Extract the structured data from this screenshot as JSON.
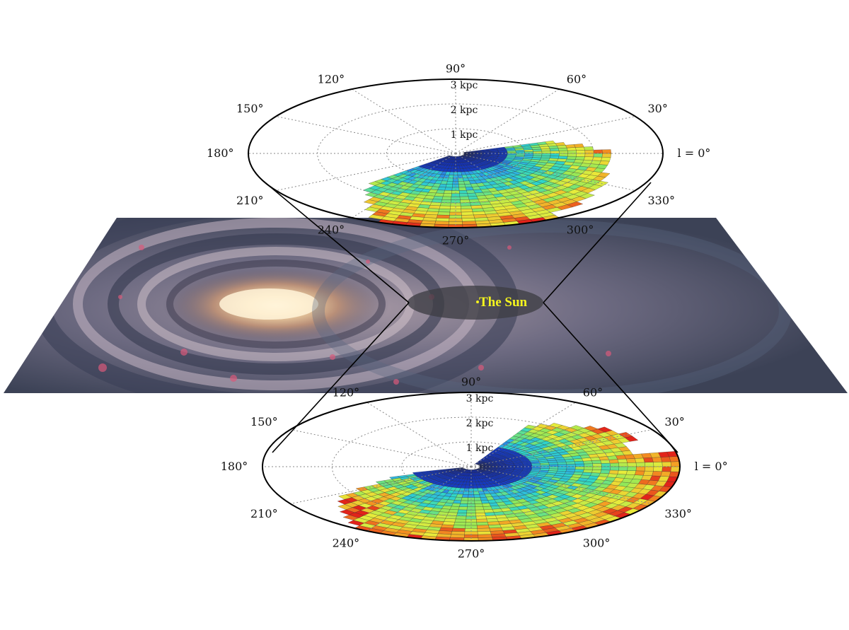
{
  "colors": {
    "low": "#0a1a9a",
    "mid": "#2fd6c8",
    "midhigh": "#d8f03a",
    "high": "#e2231a",
    "sun_label": "#f4f41e",
    "grid": "#888888",
    "outline": "#000000"
  },
  "galaxy": {
    "sun_label": "The Sun",
    "image_description_icon": "milky-way-spiral-illustration"
  },
  "polar_axes": [
    {
      "id": "top",
      "angle_labels": [
        {
          "deg": 0,
          "text": "l = 0°"
        },
        {
          "deg": 30,
          "text": "30°"
        },
        {
          "deg": 60,
          "text": "60°"
        },
        {
          "deg": 90,
          "text": "90°"
        },
        {
          "deg": 120,
          "text": "120°"
        },
        {
          "deg": 150,
          "text": "150°"
        },
        {
          "deg": 180,
          "text": "180°"
        },
        {
          "deg": 210,
          "text": "210°"
        },
        {
          "deg": 240,
          "text": "240°"
        },
        {
          "deg": 270,
          "text": "270°"
        },
        {
          "deg": 300,
          "text": "300°"
        },
        {
          "deg": 330,
          "text": "330°"
        }
      ],
      "radius_labels": [
        {
          "kpc": 1,
          "text": "1 kpc"
        },
        {
          "kpc": 2,
          "text": "2 kpc"
        },
        {
          "kpc": 3,
          "text": "3 kpc"
        }
      ]
    },
    {
      "id": "bottom",
      "angle_labels": [
        {
          "deg": 0,
          "text": "l = 0°"
        },
        {
          "deg": 30,
          "text": "30°"
        },
        {
          "deg": 60,
          "text": "60°"
        },
        {
          "deg": 90,
          "text": "90°"
        },
        {
          "deg": 120,
          "text": "120°"
        },
        {
          "deg": 150,
          "text": "150°"
        },
        {
          "deg": 180,
          "text": "180°"
        },
        {
          "deg": 210,
          "text": "210°"
        },
        {
          "deg": 240,
          "text": "240°"
        },
        {
          "deg": 270,
          "text": "270°"
        },
        {
          "deg": 300,
          "text": "300°"
        },
        {
          "deg": 330,
          "text": "330°"
        }
      ],
      "radius_labels": [
        {
          "kpc": 1,
          "text": "1 kpc"
        },
        {
          "kpc": 2,
          "text": "2 kpc"
        },
        {
          "kpc": 3,
          "text": "3 kpc"
        }
      ]
    }
  ]
}
